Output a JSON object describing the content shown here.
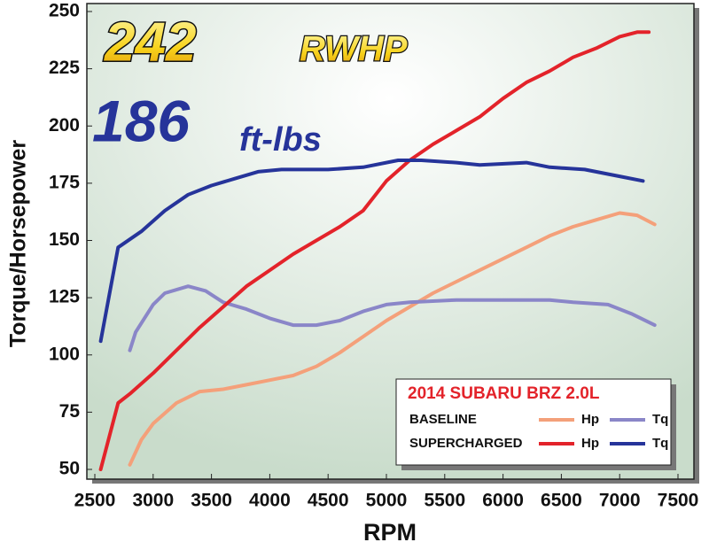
{
  "chart_data": {
    "type": "line",
    "headline": {
      "hp_value": "242",
      "hp_unit": "RWHP",
      "tq_value": "186",
      "tq_unit": "ft-lbs"
    },
    "x_label": "RPM",
    "y_label": "Torque/Horsepower",
    "xlim": [
      2500,
      7500
    ],
    "xticks": [
      2500,
      3000,
      3500,
      4000,
      4500,
      5000,
      5500,
      6000,
      6500,
      7000,
      7500
    ],
    "ylim": [
      50,
      250
    ],
    "yticks": [
      50,
      75,
      100,
      125,
      150,
      175,
      200,
      225,
      250
    ],
    "legend": {
      "title": "2014 SUBARU BRZ 2.0L",
      "position": "lower right"
    },
    "series": [
      {
        "group": "BASELINE",
        "name": "Hp",
        "color": "#f4a07a",
        "x": [
          2800,
          2900,
          3000,
          3200,
          3400,
          3600,
          3800,
          4000,
          4200,
          4400,
          4600,
          4800,
          5000,
          5200,
          5400,
          5600,
          5800,
          6000,
          6200,
          6400,
          6600,
          6800,
          7000,
          7150,
          7300
        ],
        "values": [
          52,
          63,
          70,
          79,
          84,
          85,
          87,
          89,
          91,
          95,
          101,
          108,
          115,
          121,
          127,
          132,
          137,
          142,
          147,
          152,
          156,
          159,
          162,
          161,
          157
        ]
      },
      {
        "group": "BASELINE",
        "name": "Tq",
        "color": "#8a86c8",
        "x": [
          2800,
          2850,
          3000,
          3100,
          3300,
          3450,
          3600,
          3800,
          4000,
          4200,
          4400,
          4600,
          4800,
          5000,
          5200,
          5600,
          6000,
          6400,
          6600,
          6900,
          7100,
          7300
        ],
        "values": [
          102,
          110,
          122,
          127,
          130,
          128,
          123,
          120,
          116,
          113,
          113,
          115,
          119,
          122,
          123,
          124,
          124,
          124,
          123,
          122,
          118,
          113
        ]
      },
      {
        "group": "SUPERCHARGED",
        "name": "Hp",
        "color": "#e3232a",
        "x": [
          2550,
          2700,
          2800,
          3000,
          3200,
          3400,
          3600,
          3800,
          4000,
          4200,
          4400,
          4600,
          4800,
          5000,
          5200,
          5400,
          5600,
          5800,
          6000,
          6200,
          6400,
          6600,
          6800,
          7000,
          7150,
          7250
        ],
        "values": [
          50,
          79,
          83,
          92,
          102,
          112,
          121,
          130,
          137,
          144,
          150,
          156,
          163,
          176,
          185,
          192,
          198,
          204,
          212,
          219,
          224,
          230,
          234,
          239,
          241,
          241
        ]
      },
      {
        "group": "SUPERCHARGED",
        "name": "Tq",
        "color": "#26349a",
        "x": [
          2550,
          2700,
          2900,
          3100,
          3300,
          3500,
          3700,
          3900,
          4100,
          4500,
          4800,
          5100,
          5300,
          5600,
          5800,
          6200,
          6400,
          6700,
          7000,
          7200
        ],
        "values": [
          106,
          147,
          154,
          163,
          170,
          174,
          177,
          180,
          181,
          181,
          182,
          185,
          185,
          184,
          183,
          184,
          182,
          181,
          178,
          176
        ]
      }
    ]
  }
}
